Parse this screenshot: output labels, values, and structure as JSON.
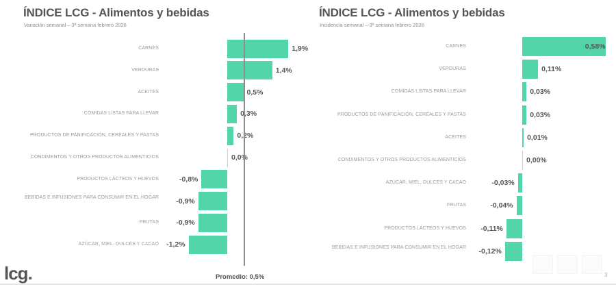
{
  "slide": {
    "logo": "lcg.",
    "page_number": "3",
    "average_label": "Promedio: 0,5%"
  },
  "left_chart": {
    "title": "ÍNDICE LCG - Alimentos y bebidas",
    "subtitle": "Variación semanal – 3ª semana febrero 2026"
  },
  "right_chart": {
    "title": "ÍNDICE LCG - Alimentos y bebidas",
    "subtitle": "Incidencia semanal – 3ª semana febrero 2026"
  },
  "colors": {
    "bar": "#52d5a9",
    "average_line": "#8f8f8f",
    "text": "#555555"
  },
  "chart_data": [
    {
      "type": "bar",
      "orientation": "horizontal",
      "title": "ÍNDICE LCG - Alimentos y bebidas",
      "subtitle": "Variación semanal – 3ª semana febrero 2026",
      "unit": "%",
      "categories": [
        "CARNES",
        "VERDURAS",
        "ACEITES",
        "COMIDAS LISTAS PARA LLEVAR",
        "PRODUCTOS DE PANIFICACIÓN, CEREALES Y PASTAS",
        "CONDIMENTOS Y OTROS PRODUCTOS ALIMENTICIOS",
        "PRODUCTOS LÁCTEOS Y HUEVOS",
        "BEBIDAS E INFUSIONES PARA CONSUMIR EN EL HOGAR",
        "FRUTAS",
        "AZÚCAR, MIEL, DULCES Y CACAO"
      ],
      "values": [
        1.9,
        1.4,
        0.5,
        0.3,
        0.2,
        0.0,
        -0.8,
        -0.9,
        -0.9,
        -1.2
      ],
      "labels": [
        "1,9%",
        "1,4%",
        "0,5%",
        "0,3%",
        "0,2%",
        "0,0%",
        "-0,8%",
        "-0,9%",
        "-0,9%",
        "-1,2%"
      ],
      "reference_line": {
        "label": "Promedio: 0,5%",
        "value": 0.5
      },
      "grid": false,
      "legend": "none"
    },
    {
      "type": "bar",
      "orientation": "horizontal",
      "title": "ÍNDICE LCG - Alimentos y bebidas",
      "subtitle": "Incidencia semanal – 3ª semana febrero 2026",
      "unit": "%",
      "categories": [
        "CARNES",
        "VERDURAS",
        "COMIDAS LISTAS PARA LLEVAR",
        "PRODUCTOS DE PANIFICACIÓN, CEREALES Y PASTAS",
        "ACEITES",
        "CONDIMENTOS Y OTROS PRODUCTOS ALIMENTICIOS",
        "AZÚCAR, MIEL, DULCES Y CACAO",
        "FRUTAS",
        "PRODUCTOS LÁCTEOS Y HUEVOS",
        "BEBIDAS E INFUSIONES PARA CONSUMIR EN EL HOGAR"
      ],
      "values": [
        0.58,
        0.11,
        0.03,
        0.03,
        0.01,
        0.0,
        -0.03,
        -0.04,
        -0.11,
        -0.12
      ],
      "labels": [
        "0,58%",
        "0,11%",
        "0,03%",
        "0,03%",
        "0,01%",
        "0,00%",
        "-0,03%",
        "-0,04%",
        "-0,11%",
        "-0,12%"
      ],
      "grid": false,
      "legend": "none"
    }
  ]
}
